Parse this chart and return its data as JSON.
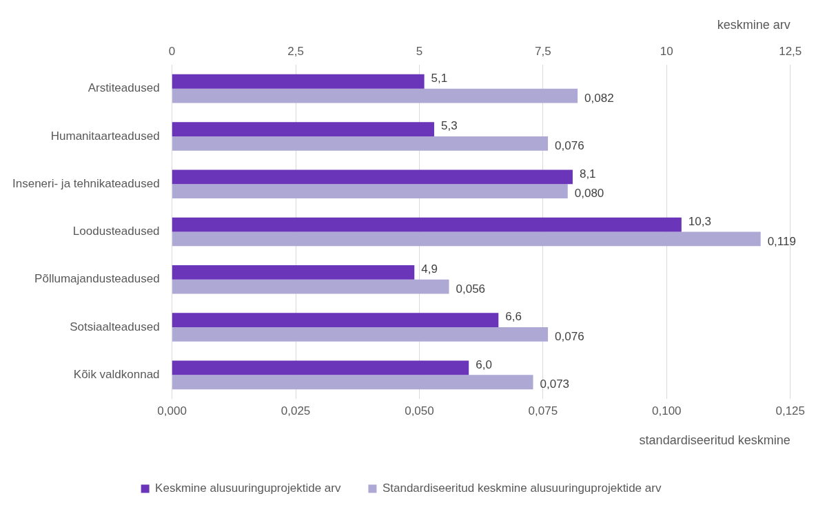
{
  "chart_data": {
    "type": "bar",
    "orientation": "horizontal",
    "categories": [
      "Arstiteadused",
      "Humanitaarteadused",
      "Inseneri- ja tehnikateadused",
      "Loodusteadused",
      "Põllumajandusteadused",
      "Sotsiaalteadused",
      "Kõik valdkonnad"
    ],
    "series": [
      {
        "name": "Keskmine alusuuringuprojektide arv",
        "color": "#6a35b8",
        "axis": "x2",
        "values": [
          5.1,
          5.3,
          8.1,
          10.3,
          4.9,
          6.6,
          6.0
        ],
        "value_labels": [
          "5,1",
          "5,3",
          "8,1",
          "10,3",
          "4,9",
          "6,6",
          "6,0"
        ]
      },
      {
        "name": "Standardiseeritud keskmine alusuuringuprojektide arv",
        "color": "#ada8d4",
        "values": [
          0.082,
          0.076,
          0.08,
          0.119,
          0.056,
          0.076,
          0.073
        ],
        "value_labels": [
          "0,082",
          "0,076",
          "0,080",
          "0,119",
          "0,056",
          "0,076",
          "0,073"
        ]
      }
    ],
    "xlabel": "standardiseeritud keskmine",
    "x2label": "keskmine arv",
    "xlim": [
      0,
      0.125
    ],
    "xticks": [
      {
        "value": 0,
        "label": "0,000"
      },
      {
        "value": 0.025,
        "label": "0,025"
      },
      {
        "value": 0.05,
        "label": "0,050"
      },
      {
        "value": 0.075,
        "label": "0,075"
      },
      {
        "value": 0.1,
        "label": "0,100"
      },
      {
        "value": 0.125,
        "label": "0,125"
      }
    ],
    "x2lim": [
      0,
      12.5
    ],
    "x2ticks": [
      0,
      {
        "value": 2.5,
        "label": "2,5"
      },
      5,
      {
        "value": 7.5,
        "label": "7,5"
      },
      10,
      {
        "value": 12.5,
        "label": "12,5"
      }
    ],
    "grid": "x",
    "legend": "bottom"
  }
}
